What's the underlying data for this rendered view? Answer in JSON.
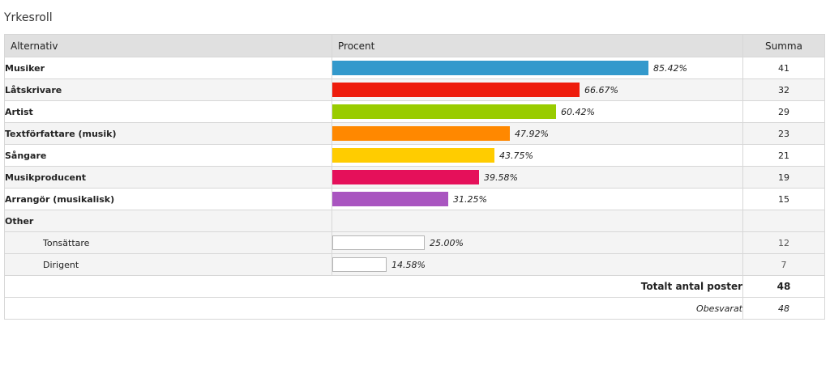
{
  "title": "Yrkesroll",
  "columns": {
    "option": "Alternativ",
    "percent": "Procent",
    "sum": "Summa"
  },
  "chart_data": {
    "type": "bar",
    "categories": [
      "Musiker",
      "Låtskrivare",
      "Artist",
      "Textförfattare (musik)",
      "Sångare",
      "Musikproducent",
      "Arrangör (musikalisk)",
      "Tonsättare",
      "Dirigent"
    ],
    "values": [
      85.42,
      66.67,
      60.42,
      47.92,
      43.75,
      39.58,
      31.25,
      25.0,
      14.58
    ],
    "counts": [
      41,
      32,
      29,
      23,
      21,
      19,
      15,
      12,
      7
    ],
    "xlim": [
      0,
      100
    ]
  },
  "rows": [
    {
      "label": "Musiker",
      "percent": 85.42,
      "percent_text": "85.42%",
      "sum": "41",
      "color": "#3399cc"
    },
    {
      "label": "Låtskrivare",
      "percent": 66.67,
      "percent_text": "66.67%",
      "sum": "32",
      "color": "#ee1c0c"
    },
    {
      "label": "Artist",
      "percent": 60.42,
      "percent_text": "60.42%",
      "sum": "29",
      "color": "#99cc00"
    },
    {
      "label": "Textförfattare (musik)",
      "percent": 47.92,
      "percent_text": "47.92%",
      "sum": "23",
      "color": "#ff8800"
    },
    {
      "label": "Sångare",
      "percent": 43.75,
      "percent_text": "43.75%",
      "sum": "21",
      "color": "#ffcc00"
    },
    {
      "label": "Musikproducent",
      "percent": 39.58,
      "percent_text": "39.58%",
      "sum": "19",
      "color": "#e5105a"
    },
    {
      "label": "Arrangör (musikalisk)",
      "percent": 31.25,
      "percent_text": "31.25%",
      "sum": "15",
      "color": "#a955c0"
    }
  ],
  "other": {
    "label": "Other",
    "rows": [
      {
        "label": "Tonsättare",
        "percent": 25.0,
        "percent_text": "25.00%",
        "sum": "12"
      },
      {
        "label": "Dirigent",
        "percent": 14.58,
        "percent_text": "14.58%",
        "sum": "7"
      }
    ]
  },
  "total": {
    "label": "Totalt antal poster",
    "value": "48"
  },
  "unanswered": {
    "label": "Obesvarat",
    "value": "48"
  }
}
